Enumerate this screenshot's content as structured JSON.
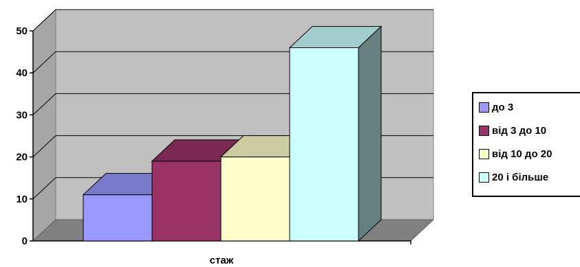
{
  "chart_data": {
    "type": "bar",
    "categories": [
      "до 3",
      "від 3 до 10",
      "від 10 до 20",
      "20 і більше"
    ],
    "values": [
      11,
      19,
      20,
      46
    ],
    "xlabel": "стаж",
    "ylabel": "",
    "ylim": [
      0,
      50
    ],
    "yticks": [
      "0",
      "10",
      "20",
      "30",
      "40",
      "50"
    ],
    "grid": true,
    "legend_position": "right",
    "colors": [
      "#9999ff",
      "#993366",
      "#ffffcc",
      "#ccffff"
    ],
    "legend": [
      "до 3",
      "від 3 до 10",
      "від 10 до 20",
      "20 і більше"
    ]
  }
}
